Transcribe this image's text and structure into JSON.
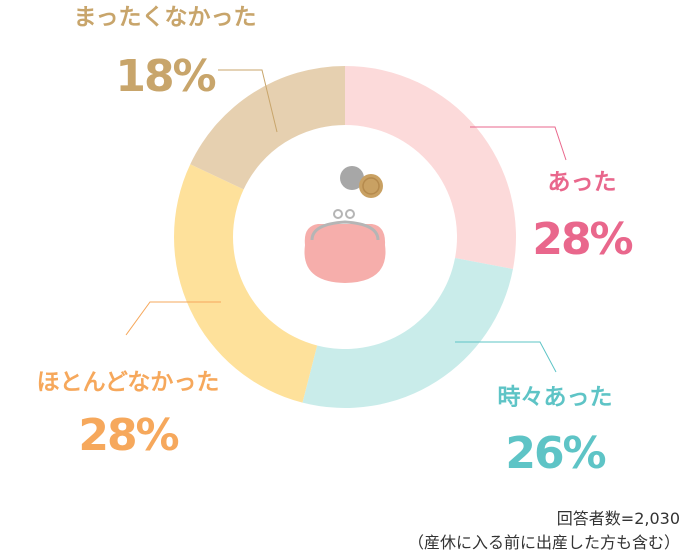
{
  "chart_data": {
    "type": "donut",
    "categories": [
      "あった",
      "時々あった",
      "ほとんどなかった",
      "まったくなかった"
    ],
    "values": [
      28,
      26,
      28,
      18
    ],
    "value_labels": [
      "28%",
      "26%",
      "28%",
      "18%"
    ],
    "colors": [
      "#fcdada",
      "#c9ecea",
      "#fee19b",
      "#e6d0b0"
    ],
    "label_colors": [
      "#e9678c",
      "#5ec4c6",
      "#f6a85c",
      "#c8a56b"
    ],
    "notes": [
      "回答者数=2,030",
      "（産休に入る前に出産した方も含む）"
    ]
  }
}
